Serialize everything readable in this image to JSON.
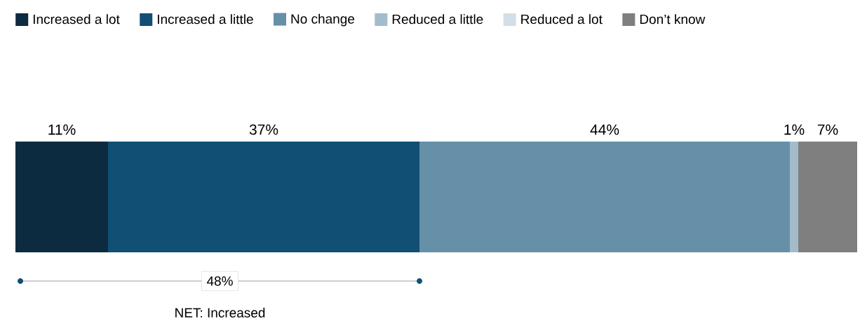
{
  "chart_data": {
    "type": "bar",
    "orientation": "horizontal",
    "stacked": true,
    "categories": [
      null
    ],
    "legend": "top",
    "series": [
      {
        "name": "Increased a lot",
        "color": "#0d2b40",
        "values": [
          11
        ],
        "value_labels": [
          "11%"
        ]
      },
      {
        "name": "Increased a little",
        "color": "#114f74",
        "values": [
          37
        ],
        "value_labels": [
          "37%"
        ]
      },
      {
        "name": "No change",
        "color": "#668fa8",
        "values": [
          44
        ],
        "value_labels": [
          "44%"
        ]
      },
      {
        "name": "Reduced a little",
        "color": "#a3bccb",
        "values": [
          1
        ],
        "value_labels": [
          "1%"
        ]
      },
      {
        "name": "Reduced a lot",
        "color": "#d3dee6",
        "values": [
          null
        ]
      },
      {
        "name": "Don’t know",
        "color": "#7f7f7f",
        "values": [
          7
        ],
        "value_labels": [
          "7%"
        ]
      }
    ],
    "annotations": [
      "48%",
      "NET: Increased"
    ]
  }
}
